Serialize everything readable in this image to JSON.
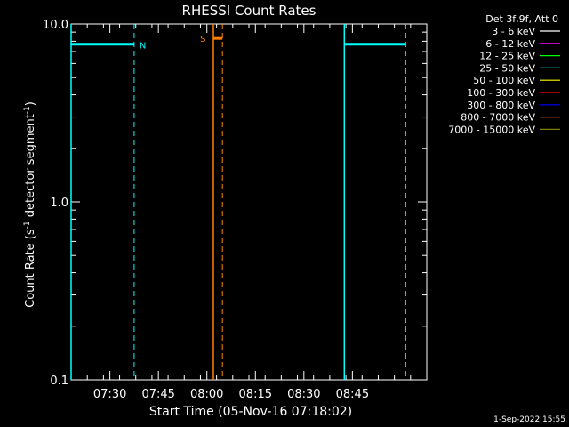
{
  "chart_data": {
    "type": "line",
    "title": "RHESSI Count Rates",
    "xlabel": "Start Time (05-Nov-16 07:18:02)",
    "ylabel_main": "Count Rate (s",
    "ylabel_sup1": "-1",
    "ylabel_mid": " detector segment",
    "ylabel_sup2": "-1",
    "ylabel_end": ")",
    "yscale": "log",
    "ylim": [
      0.1,
      10.0
    ],
    "xlim_minutes": [
      0,
      110
    ],
    "x_ticks": [
      {
        "minute": 12,
        "label": "07:30"
      },
      {
        "minute": 27,
        "label": "07:45"
      },
      {
        "minute": 42,
        "label": "08:00"
      },
      {
        "minute": 57,
        "label": "08:15"
      },
      {
        "minute": 72,
        "label": "08:30"
      },
      {
        "minute": 87,
        "label": "08:45"
      }
    ],
    "y_ticks": [
      {
        "value": 10.0,
        "label": "10.0"
      },
      {
        "value": 1.0,
        "label": "1.0"
      },
      {
        "value": 0.1,
        "label": "0.1"
      }
    ],
    "legend_title": "Det 3f,9f, Att 0",
    "legend": [
      {
        "label": "3 - 6 keV",
        "color": "#ffffff"
      },
      {
        "label": "6 - 12 keV",
        "color": "#ff00ff"
      },
      {
        "label": "12 - 25 keV",
        "color": "#00ff00"
      },
      {
        "label": "25 - 50 keV",
        "color": "#00ffff"
      },
      {
        "label": "50 - 100 keV",
        "color": "#ffff00"
      },
      {
        "label": "100 - 300 keV",
        "color": "#ff0000"
      },
      {
        "label": "300 - 800 keV",
        "color": "#0000ff"
      },
      {
        "label": "800 - 7000 keV",
        "color": "#ff8000"
      },
      {
        "label": "7000 - 15000 keV",
        "color": "#808000"
      }
    ],
    "intervals": [
      {
        "label": "",
        "color": "#00ffff",
        "start": 0,
        "end": 19.5,
        "value": 7.7,
        "solid_at_start": true
      },
      {
        "label": "N",
        "color": "#00ffff",
        "label_at": 19.5
      },
      {
        "label": "S",
        "color": "#ff8000",
        "start": 44.0,
        "end": 46.8,
        "value": 8.3,
        "label_at": 42.5,
        "solid_at_start": true
      },
      {
        "label": "",
        "color": "#00ffff",
        "start": 84.5,
        "end": 103.5,
        "value": 7.7,
        "solid_at_start": true
      }
    ],
    "timestamp": "1-Sep-2022 15:55"
  }
}
